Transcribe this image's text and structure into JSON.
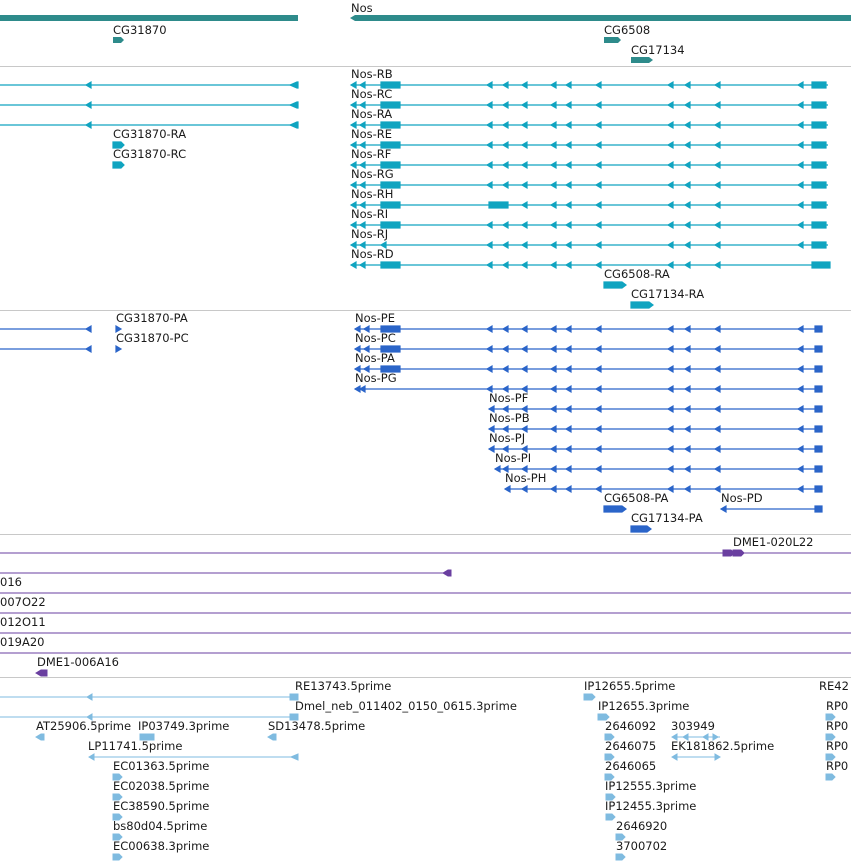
{
  "colors": {
    "gene": "#2e8b8b",
    "transcript": "#10a4c0",
    "protein": "#2b65c9",
    "clone": "#6a3fa0",
    "est": "#7fbbe0",
    "separator": "#c8c8c8"
  },
  "panels": {
    "genes": [
      {
        "label": "CG31870"
      },
      {
        "label": "Nos"
      },
      {
        "label": "CG6508"
      },
      {
        "label": "CG17134"
      }
    ],
    "transcripts": [
      {
        "label": "Nos-RB"
      },
      {
        "label": "Nos-RC"
      },
      {
        "label": "Nos-RA"
      },
      {
        "label": "Nos-RE"
      },
      {
        "label": "Nos-RF"
      },
      {
        "label": "Nos-RG"
      },
      {
        "label": "Nos-RH"
      },
      {
        "label": "Nos-RI"
      },
      {
        "label": "Nos-RJ"
      },
      {
        "label": "Nos-RD"
      },
      {
        "label": "CG31870-RA"
      },
      {
        "label": "CG31870-RC"
      },
      {
        "label": "CG6508-RA"
      },
      {
        "label": "CG17134-RA"
      }
    ],
    "proteins": [
      {
        "label": "CG31870-PA"
      },
      {
        "label": "CG31870-PC"
      },
      {
        "label": "Nos-PE"
      },
      {
        "label": "Nos-PC"
      },
      {
        "label": "Nos-PA"
      },
      {
        "label": "Nos-PG"
      },
      {
        "label": "Nos-PF"
      },
      {
        "label": "Nos-PB"
      },
      {
        "label": "Nos-PJ"
      },
      {
        "label": "Nos-PI"
      },
      {
        "label": "Nos-PH"
      },
      {
        "label": "CG6508-PA"
      },
      {
        "label": "Nos-PD"
      },
      {
        "label": "CG17134-PA"
      }
    ],
    "clones": [
      {
        "label": "DME1-020L22"
      },
      {
        "label": "016"
      },
      {
        "label": "007O22"
      },
      {
        "label": "012O11"
      },
      {
        "label": "019A20"
      },
      {
        "label": "DME1-006A16"
      }
    ],
    "ests": [
      {
        "label": "RE13743.5prime"
      },
      {
        "label": "Dmel_neb_011402_0150_0615.3prime"
      },
      {
        "label": "AT25906.5prime"
      },
      {
        "label": "IP03749.3prime"
      },
      {
        "label": "SD13478.5prime"
      },
      {
        "label": "LP11741.5prime"
      },
      {
        "label": "EC01363.5prime"
      },
      {
        "label": "EC02038.5prime"
      },
      {
        "label": "EC38590.5prime"
      },
      {
        "label": "bs80d04.5prime"
      },
      {
        "label": "EC00638.3prime"
      },
      {
        "label": "IP12655.5prime"
      },
      {
        "label": "IP12655.3prime"
      },
      {
        "label": "2646092"
      },
      {
        "label": "303949"
      },
      {
        "label": "2646075"
      },
      {
        "label": "EK181862.5prime"
      },
      {
        "label": "2646065"
      },
      {
        "label": "IP12555.3prime"
      },
      {
        "label": "IP12455.3prime"
      },
      {
        "label": "2646920"
      },
      {
        "label": "3700702"
      },
      {
        "label": "RE42"
      },
      {
        "label": "RP0"
      },
      {
        "label": "RP0"
      },
      {
        "label": "RP0"
      },
      {
        "label": "RP0"
      }
    ]
  }
}
